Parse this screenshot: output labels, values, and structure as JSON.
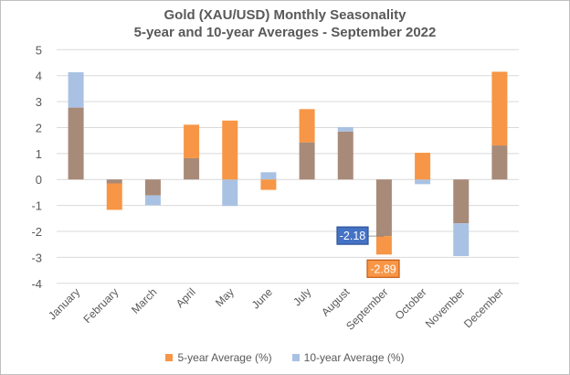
{
  "chart_data": {
    "type": "bar",
    "title": "Gold (XAU/USD) Monthly Seasonality",
    "subtitle": "5-year and 10-year Averages - September 2022",
    "categories": [
      "January",
      "February",
      "March",
      "April",
      "May",
      "June",
      "July",
      "August",
      "September",
      "October",
      "November",
      "December"
    ],
    "series": [
      {
        "name": "5-year Average (%)",
        "color": "#F79646",
        "values": [
          2.77,
          -1.17,
          -0.61,
          2.11,
          2.27,
          -0.4,
          2.71,
          1.85,
          -2.89,
          1.03,
          -1.69,
          4.15
        ]
      },
      {
        "name": "10-year Average (%)",
        "color": "#A9C2E3",
        "values": [
          4.13,
          -0.15,
          -0.99,
          0.82,
          -1.02,
          0.28,
          1.43,
          2.02,
          -2.18,
          -0.18,
          -2.95,
          1.31
        ]
      }
    ],
    "overlap_color": "#A88A78",
    "ylim": [
      -4,
      5
    ],
    "yticks": [
      "5",
      "4",
      "3",
      "2",
      "1",
      "0",
      "-1",
      "-2",
      "-3",
      "-4"
    ],
    "grid": true,
    "legend": "bottom",
    "annotations": [
      {
        "text": "-2.18",
        "category": "September",
        "series": "10-year Average (%)",
        "color": "#4472C4"
      },
      {
        "text": "-2.89",
        "category": "September",
        "series": "5-year Average (%)",
        "color": "#F79646"
      }
    ]
  }
}
